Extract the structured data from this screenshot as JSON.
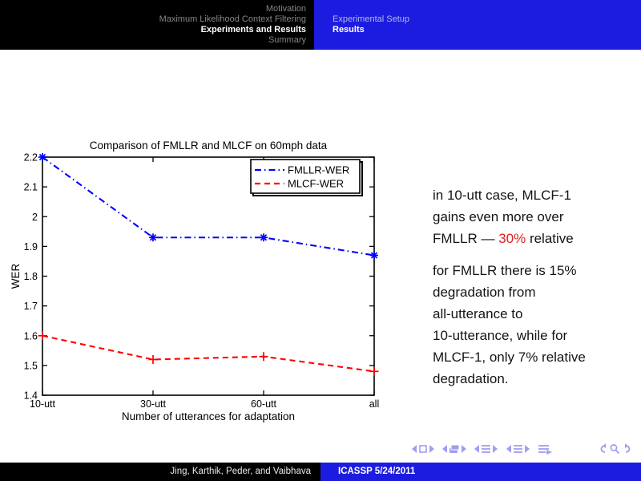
{
  "colors": {
    "accent_blue": "#1c1ce0",
    "alert_red": "#dd2222",
    "nav_periwinkle": "#9f9fee",
    "dim_gray": "#858585",
    "dim_lavender": "#b6b6e4",
    "fmllr_blue": "#0000ff",
    "mlcf_red": "#ff0000"
  },
  "header": {
    "sections": [
      {
        "label": "Motivation",
        "current": false
      },
      {
        "label": "Maximum Likelihood Context Filtering",
        "current": false
      },
      {
        "label": "Experiments and Results",
        "current": true
      },
      {
        "label": "Summary",
        "current": false
      }
    ],
    "subsections": [
      {
        "label": "Experimental Setup",
        "current": false
      },
      {
        "label": "Results",
        "current": true
      }
    ]
  },
  "chart_data": {
    "type": "line",
    "title": "Comparison of FMLLR and MLCF on 60mph data",
    "xlabel": "Number of utterances for adaptation",
    "ylabel": "WER",
    "categories": [
      "10-utt",
      "30-utt",
      "60-utt",
      "all"
    ],
    "series": [
      {
        "name": "FMLLR-WER",
        "color": "#0000ff",
        "style": "dash-dot",
        "marker": "asterisk",
        "values": [
          2.2,
          1.93,
          1.93,
          1.87
        ]
      },
      {
        "name": "MLCF-WER",
        "color": "#ff0000",
        "style": "dashed",
        "marker": "plus",
        "values": [
          1.6,
          1.52,
          1.53,
          1.48
        ]
      }
    ],
    "ylim": [
      1.4,
      2.2
    ],
    "yticks": [
      "1.4",
      "1.5",
      "1.6",
      "1.7",
      "1.8",
      "1.9",
      "2",
      "2.1",
      "2.2"
    ],
    "legend_position": "upper right",
    "grid": false
  },
  "notes": {
    "paragraphs": [
      {
        "lines": [
          [
            {
              "text": "in 10-utt case, MLCF-1"
            }
          ],
          [
            {
              "text": "gains even more over"
            }
          ],
          [
            {
              "text": "FMLLR — "
            },
            {
              "text": "30%",
              "alert": true
            },
            {
              "text": " relative"
            }
          ]
        ]
      },
      {
        "lines": [
          [
            {
              "text": "for FMLLR there is 15%"
            }
          ],
          [
            {
              "text": "degradation from"
            }
          ],
          [
            {
              "text": "all-utterance to"
            }
          ],
          [
            {
              "text": "10-utterance, while for"
            }
          ],
          [
            {
              "text": "MLCF-1, only 7% relative"
            }
          ],
          [
            {
              "text": "degradation."
            }
          ]
        ]
      }
    ]
  },
  "navigation_icons": [
    "prev-slide",
    "slide",
    "next-slide",
    "prev-frame",
    "frame",
    "next-frame",
    "prev-subsection",
    "subsection",
    "next-subsection",
    "prev-section",
    "section",
    "next-section",
    "appendix",
    "history-back",
    "search",
    "history-forward"
  ],
  "footer": {
    "authors": "Jing, Karthik, Peder, and Vaibhava",
    "conference": "ICASSP 5/24/2011"
  }
}
